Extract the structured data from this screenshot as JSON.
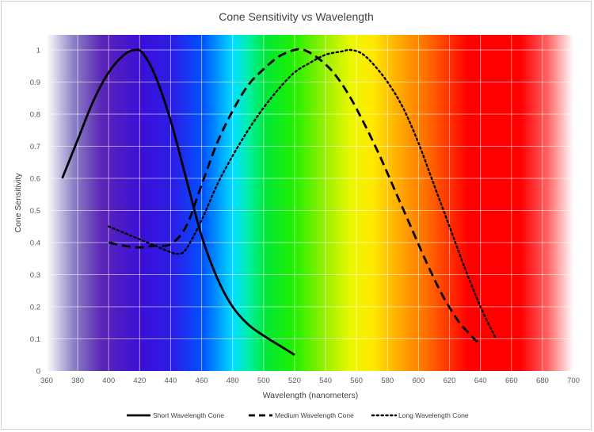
{
  "chart_data": {
    "type": "line",
    "title": "Cone Sensitivity vs Wavelength",
    "xlabel": "Wavelength (nanometers)",
    "ylabel": "Cone Sensitivity",
    "xlim": [
      360,
      700
    ],
    "ylim": [
      0,
      1.05
    ],
    "x_ticks": [
      360,
      380,
      400,
      420,
      440,
      460,
      480,
      500,
      520,
      540,
      560,
      580,
      600,
      620,
      640,
      660,
      680,
      700
    ],
    "y_ticks": [
      0,
      0.1,
      0.2,
      0.3,
      0.4,
      0.5,
      0.6,
      0.7,
      0.8,
      0.9,
      1
    ],
    "grid": true,
    "legend_position": "bottom",
    "background": "visible spectrum gradient",
    "series": [
      {
        "name": "Short Wavelength Cone",
        "style": "solid",
        "points": [
          [
            370,
            0.6
          ],
          [
            380,
            0.72
          ],
          [
            390,
            0.84
          ],
          [
            400,
            0.93
          ],
          [
            410,
            0.985
          ],
          [
            417,
            1.0
          ],
          [
            422,
            0.99
          ],
          [
            430,
            0.92
          ],
          [
            440,
            0.78
          ],
          [
            450,
            0.6
          ],
          [
            460,
            0.42
          ],
          [
            470,
            0.29
          ],
          [
            480,
            0.2
          ],
          [
            490,
            0.145
          ],
          [
            500,
            0.11
          ],
          [
            510,
            0.08
          ],
          [
            520,
            0.05
          ]
        ]
      },
      {
        "name": "Medium Wavelength Cone",
        "style": "dashed",
        "points": [
          [
            400,
            0.4
          ],
          [
            410,
            0.39
          ],
          [
            420,
            0.385
          ],
          [
            430,
            0.39
          ],
          [
            440,
            0.395
          ],
          [
            450,
            0.45
          ],
          [
            460,
            0.58
          ],
          [
            470,
            0.71
          ],
          [
            480,
            0.81
          ],
          [
            490,
            0.89
          ],
          [
            500,
            0.94
          ],
          [
            510,
            0.98
          ],
          [
            520,
            1.0
          ],
          [
            526,
            1.0
          ],
          [
            535,
            0.975
          ],
          [
            545,
            0.93
          ],
          [
            555,
            0.86
          ],
          [
            565,
            0.77
          ],
          [
            575,
            0.67
          ],
          [
            585,
            0.56
          ],
          [
            595,
            0.45
          ],
          [
            605,
            0.34
          ],
          [
            615,
            0.24
          ],
          [
            625,
            0.16
          ],
          [
            632,
            0.12
          ],
          [
            638,
            0.09
          ]
        ]
      },
      {
        "name": "Long Wavelength Cone",
        "style": "dotted",
        "points": [
          [
            400,
            0.45
          ],
          [
            410,
            0.43
          ],
          [
            420,
            0.41
          ],
          [
            430,
            0.39
          ],
          [
            440,
            0.37
          ],
          [
            445,
            0.365
          ],
          [
            450,
            0.38
          ],
          [
            460,
            0.47
          ],
          [
            470,
            0.58
          ],
          [
            480,
            0.67
          ],
          [
            490,
            0.75
          ],
          [
            500,
            0.82
          ],
          [
            510,
            0.88
          ],
          [
            520,
            0.93
          ],
          [
            530,
            0.96
          ],
          [
            540,
            0.985
          ],
          [
            550,
            0.995
          ],
          [
            556,
            1.0
          ],
          [
            563,
            0.99
          ],
          [
            570,
            0.96
          ],
          [
            580,
            0.9
          ],
          [
            590,
            0.82
          ],
          [
            600,
            0.71
          ],
          [
            610,
            0.58
          ],
          [
            620,
            0.45
          ],
          [
            630,
            0.32
          ],
          [
            640,
            0.2
          ],
          [
            650,
            0.1
          ]
        ]
      }
    ]
  }
}
